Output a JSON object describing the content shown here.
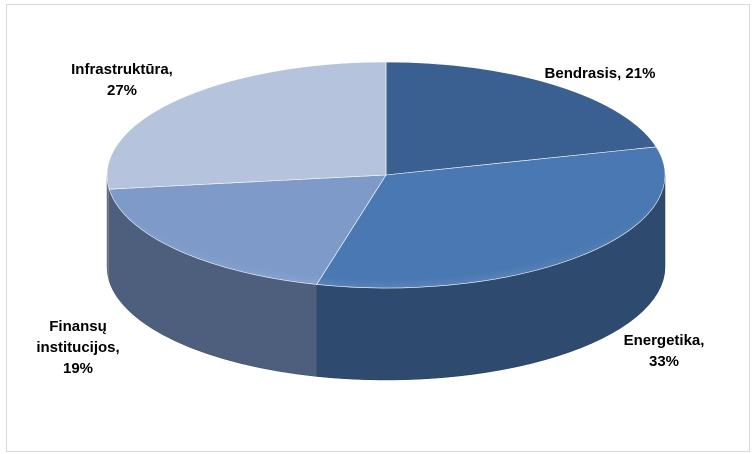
{
  "chart_data": {
    "type": "pie",
    "style": "3d",
    "slices": [
      {
        "label": "Bendrasis",
        "value": 21,
        "color": "#3a5f91",
        "label_text": [
          "Bendrasis, 21%"
        ]
      },
      {
        "label": "Energetika",
        "value": 33,
        "color": "#4a78b2",
        "label_text": [
          "Energetika,",
          "33%"
        ]
      },
      {
        "label": "Finansų institucijos",
        "value": 19,
        "color": "#7d9ac9",
        "label_text": [
          "Finansų",
          "institucijos,",
          "19%"
        ]
      },
      {
        "label": "Infrastruktūra",
        "value": 27,
        "color": "#b5c3dd",
        "label_text": [
          "Infrastruktūra,",
          "27%"
        ]
      }
    ],
    "legend": "none",
    "title": ""
  }
}
